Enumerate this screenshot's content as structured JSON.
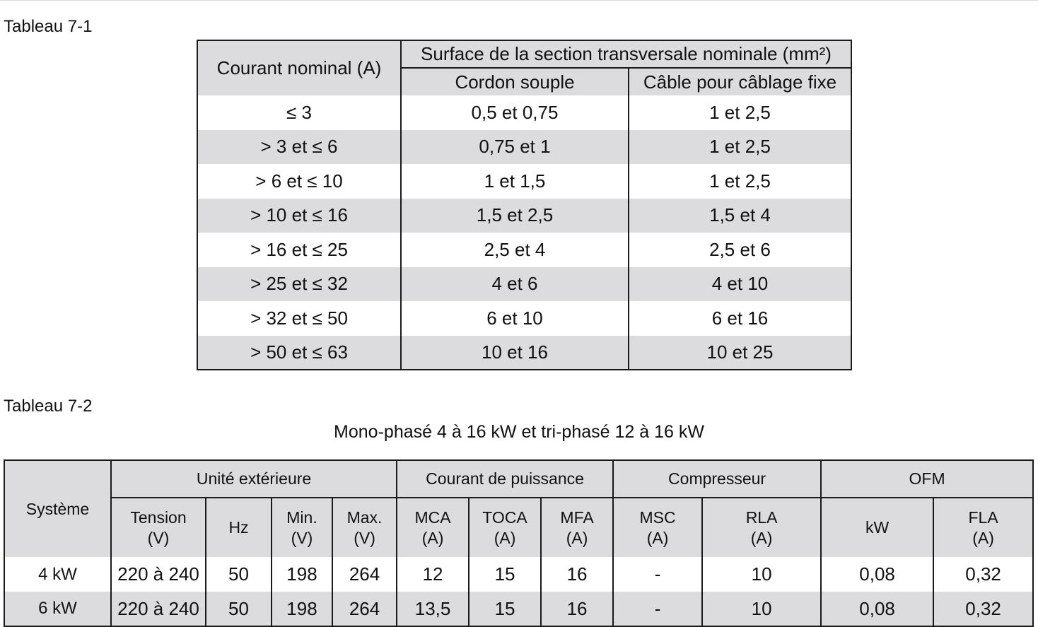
{
  "table1": {
    "caption": "Tableau 7-1",
    "header": {
      "courant": "Courant nominal (A)",
      "surface": "Surface de la section transversale nominale (mm²)",
      "cordon": "Cordon souple",
      "cable": "Câble pour câblage fixe"
    },
    "rows": [
      {
        "courant": "≤ 3",
        "cordon": "0,5 et 0,75",
        "cable": "1 et 2,5"
      },
      {
        "courant": "> 3 et ≤ 6",
        "cordon": "0,75 et 1",
        "cable": "1 et 2,5"
      },
      {
        "courant": "> 6 et ≤ 10",
        "cordon": "1 et 1,5",
        "cable": "1 et 2,5"
      },
      {
        "courant": "> 10 et ≤ 16",
        "cordon": "1,5 et 2,5",
        "cable": "1,5 et 4"
      },
      {
        "courant": "> 16 et ≤ 25",
        "cordon": "2,5 et 4",
        "cable": "2,5 et 6"
      },
      {
        "courant": "> 25 et ≤ 32",
        "cordon": "4 et 6",
        "cable": "4 et 10"
      },
      {
        "courant": "> 32 et ≤ 50",
        "cordon": "6 et 10",
        "cable": "6 et 16"
      },
      {
        "courant": "> 50 et ≤ 63",
        "cordon": "10 et 16",
        "cable": "10 et 25"
      }
    ]
  },
  "table2": {
    "caption": "Tableau 7-2",
    "subtitle": "Mono-phasé 4 à 16 kW et tri-phasé 12 à 16 kW",
    "groups": {
      "systeme": "Système",
      "unite": "Unité extérieure",
      "courant": "Courant de puissance",
      "compresseur": "Compresseur",
      "ofm": "OFM"
    },
    "columns": {
      "tension": [
        "Tension",
        "(V)"
      ],
      "hz": [
        "Hz"
      ],
      "min": [
        "Min.",
        "(V)"
      ],
      "max": [
        "Max.",
        "(V)"
      ],
      "mca": [
        "MCA",
        "(A)"
      ],
      "toca": [
        "TOCA",
        "(A)"
      ],
      "mfa": [
        "MFA",
        "(A)"
      ],
      "msc": [
        "MSC",
        "(A)"
      ],
      "rla": [
        "RLA",
        "(A)"
      ],
      "kw": [
        "kW"
      ],
      "fla": [
        "FLA",
        "(A)"
      ]
    },
    "rows": [
      {
        "systeme": "4 kW",
        "tension": "220 à 240",
        "hz": "50",
        "min": "198",
        "max": "264",
        "mca": "12",
        "toca": "15",
        "mfa": "16",
        "msc": "-",
        "rla": "10",
        "kw": "0,08",
        "fla": "0,32"
      },
      {
        "systeme": "6 kW",
        "tension": "220 à 240",
        "hz": "50",
        "min": "198",
        "max": "264",
        "mca": "13,5",
        "toca": "15",
        "mfa": "16",
        "msc": "-",
        "rla": "10",
        "kw": "0,08",
        "fla": "0,32"
      }
    ]
  },
  "colors": {
    "header_fill": "#dcdcdf",
    "border": "#1a1a1a"
  }
}
